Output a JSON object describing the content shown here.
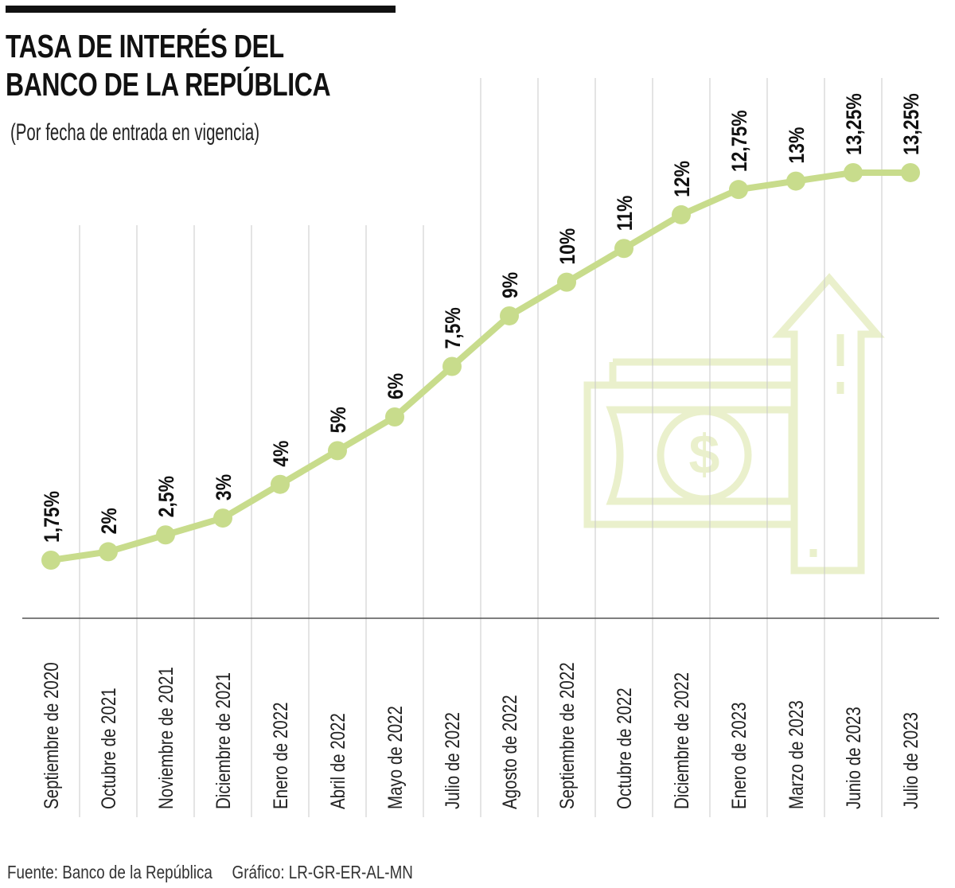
{
  "header": {
    "title_line1": "TASA DE INTERÉS DEL",
    "title_line2": "BANCO DE LA REPÚBLICA",
    "subtitle": "(Por fecha de entrada en vigencia)"
  },
  "footer": {
    "source": "Fuente: Banco de la República",
    "credit": "Gráfico: LR-GR-ER-AL-MN"
  },
  "colors": {
    "line": "#c8dc8c",
    "icon": "#eaf0cc",
    "grid": "#c8c8c8",
    "text": "#111111"
  },
  "icon": "money-bill-with-up-arrow",
  "chart_data": {
    "type": "line",
    "title": "TASA DE INTERÉS DEL BANCO DE LA REPÚBLICA",
    "subtitle": "(Por fecha de entrada en vigencia)",
    "categories": [
      "Septiembre de 2020",
      "Octubre de 2021",
      "Noviembre de 2021",
      "Diciembre de 2021",
      "Enero de 2022",
      "Abril de 2022",
      "Mayo de 2022",
      "Julio de 2022",
      "Agosto de 2022",
      "Septiembre de 2022",
      "Octubre de 2022",
      "Diciembre de 2022",
      "Enero de 2023",
      "Marzo de 2023",
      "Junio de 2023",
      "Julio de 2023"
    ],
    "values": [
      1.75,
      2,
      2.5,
      3,
      4,
      5,
      6,
      7.5,
      9,
      10,
      11,
      12,
      12.75,
      13,
      13.25,
      13.25
    ],
    "data_labels": [
      "1,75%",
      "2%",
      "2,5%",
      "3%",
      "4%",
      "5%",
      "6%",
      "7,5%",
      "9%",
      "10%",
      "11%",
      "12%",
      "12,75%",
      "13%",
      "13,25%",
      "13,25%"
    ],
    "grid": "vertical",
    "legend": "none"
  }
}
